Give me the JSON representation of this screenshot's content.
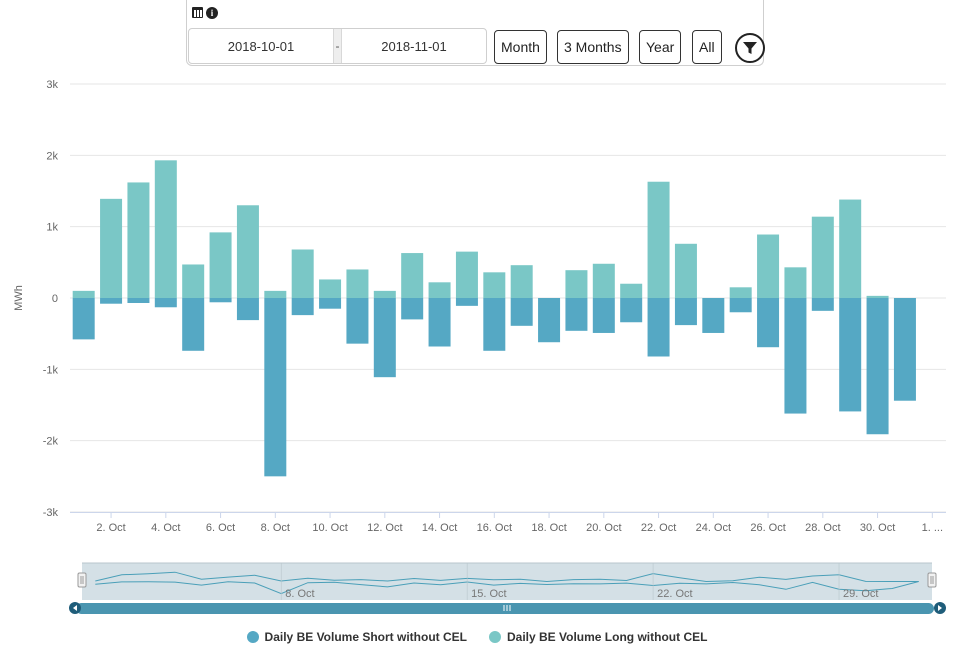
{
  "toolbar": {
    "date_from": "2018-10-01",
    "date_separator": "-",
    "date_to": "2018-11-01",
    "ranges": [
      "Month",
      "3 Months",
      "Year",
      "All"
    ],
    "icons": [
      "calendar-icon",
      "info-icon",
      "filter-icon"
    ]
  },
  "colors": {
    "short": "#55a8c4",
    "long": "#7ac7c6",
    "navigator_line": "#4a9fb8",
    "navigator_mask": "#cfdde3",
    "scrollbar": "#4a95b0"
  },
  "chart_data": {
    "type": "bar",
    "ylabel": "MWh",
    "ylim": [
      -3000,
      3000
    ],
    "yticks": [
      3000,
      2000,
      1000,
      0,
      -1000,
      -2000,
      -3000
    ],
    "ytick_labels": [
      "3k",
      "2k",
      "1k",
      "0",
      "-1k",
      "-2k",
      "-3k"
    ],
    "categories": [
      "1. Oct",
      "2. Oct",
      "3. Oct",
      "4. Oct",
      "5. Oct",
      "6. Oct",
      "7. Oct",
      "8. Oct",
      "9. Oct",
      "10. Oct",
      "11. Oct",
      "12. Oct",
      "13. Oct",
      "14. Oct",
      "15. Oct",
      "16. Oct",
      "17. Oct",
      "18. Oct",
      "19. Oct",
      "20. Oct",
      "21. Oct",
      "22. Oct",
      "23. Oct",
      "24. Oct",
      "25. Oct",
      "26. Oct",
      "27. Oct",
      "28. Oct",
      "29. Oct",
      "30. Oct",
      "31. Oct",
      "1. Nov"
    ],
    "xtick_labels": [
      "2. Oct",
      "4. Oct",
      "6. Oct",
      "8. Oct",
      "10. Oct",
      "12. Oct",
      "14. Oct",
      "16. Oct",
      "18. Oct",
      "20. Oct",
      "22. Oct",
      "24. Oct",
      "26. Oct",
      "28. Oct",
      "30. Oct",
      "1. ..."
    ],
    "xtick_index": [
      1,
      3,
      5,
      7,
      9,
      11,
      13,
      15,
      17,
      19,
      21,
      23,
      25,
      27,
      29,
      31
    ],
    "series": [
      {
        "name": "Daily BE Volume Short without CEL",
        "color": "#55a8c4",
        "values": [
          -580,
          -80,
          -70,
          -130,
          -740,
          -60,
          -310,
          -2500,
          -240,
          -150,
          -640,
          -1110,
          -300,
          -680,
          -110,
          -740,
          -390,
          -620,
          -460,
          -490,
          -340,
          -820,
          -380,
          -490,
          -200,
          -690,
          -1620,
          -180,
          -1590,
          -1910,
          -1440,
          0
        ]
      },
      {
        "name": "Daily BE Volume Long without CEL",
        "color": "#7ac7c6",
        "values": [
          100,
          1390,
          1620,
          1930,
          470,
          920,
          1300,
          100,
          680,
          260,
          400,
          100,
          630,
          220,
          650,
          360,
          460,
          0,
          390,
          480,
          200,
          1630,
          760,
          0,
          150,
          890,
          430,
          1140,
          1380,
          30,
          0,
          0
        ]
      }
    ],
    "navigator_labels": [
      "8. Oct",
      "15. Oct",
      "22. Oct",
      "29. Oct"
    ],
    "grid": true,
    "legend_position": "bottom-center"
  }
}
